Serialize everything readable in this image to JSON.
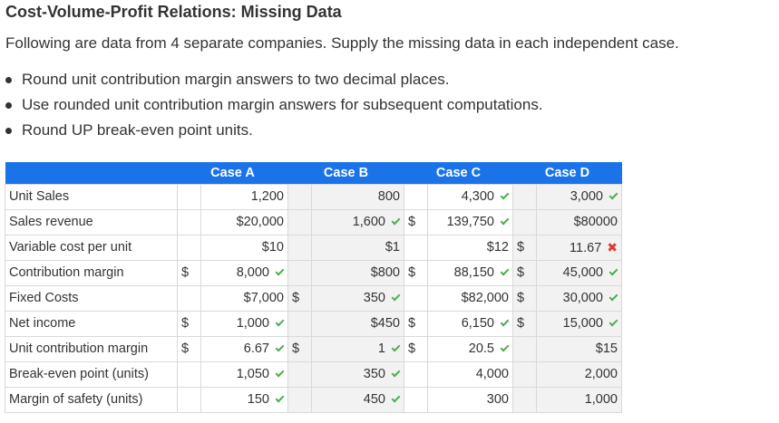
{
  "title": "Cost-Volume-Profit Relations: Missing Data",
  "intro": "Following are data from 4 separate companies. Supply the missing data in each independent case.",
  "bullets": [
    "Round unit contribution margin answers to two decimal places.",
    "Use rounded unit contribution margin answers for subsequent computations.",
    "Round UP break-even point units."
  ],
  "table": {
    "headers": [
      "Case A",
      "Case B",
      "Case C",
      "Case D"
    ],
    "rows": [
      {
        "label": "Unit Sales",
        "cells": [
          {
            "cur": "",
            "val": "1,200",
            "mark": ""
          },
          {
            "cur": "",
            "val": "800",
            "mark": ""
          },
          {
            "cur": "",
            "val": "4,300",
            "mark": "check"
          },
          {
            "cur": "",
            "val": "3,000",
            "mark": "check"
          }
        ]
      },
      {
        "label": "Sales revenue",
        "cells": [
          {
            "cur": "",
            "val": "$20,000",
            "mark": ""
          },
          {
            "cur": "",
            "val": "1,600",
            "mark": "check"
          },
          {
            "cur": "$",
            "val": "139,750",
            "mark": "check"
          },
          {
            "cur": "",
            "val": "$80000",
            "mark": ""
          }
        ]
      },
      {
        "label": "Variable cost per unit",
        "cells": [
          {
            "cur": "",
            "val": "$10",
            "mark": ""
          },
          {
            "cur": "",
            "val": "$1",
            "mark": ""
          },
          {
            "cur": "",
            "val": "$12",
            "mark": ""
          },
          {
            "cur": "$",
            "val": "11.67",
            "mark": "cross"
          }
        ]
      },
      {
        "label": "Contribution margin",
        "cells": [
          {
            "cur": "$",
            "val": "8,000",
            "mark": "check"
          },
          {
            "cur": "",
            "val": "$800",
            "mark": ""
          },
          {
            "cur": "$",
            "val": "88,150",
            "mark": "check"
          },
          {
            "cur": "$",
            "val": "45,000",
            "mark": "check"
          }
        ]
      },
      {
        "label": "Fixed Costs",
        "cells": [
          {
            "cur": "",
            "val": "$7,000",
            "mark": ""
          },
          {
            "cur": "$",
            "val": "350",
            "mark": "check"
          },
          {
            "cur": "",
            "val": "$82,000",
            "mark": ""
          },
          {
            "cur": "$",
            "val": "30,000",
            "mark": "check"
          }
        ]
      },
      {
        "label": "Net income",
        "cells": [
          {
            "cur": "$",
            "val": "1,000",
            "mark": "check"
          },
          {
            "cur": "",
            "val": "$450",
            "mark": ""
          },
          {
            "cur": "$",
            "val": "6,150",
            "mark": "check"
          },
          {
            "cur": "$",
            "val": "15,000",
            "mark": "check"
          }
        ]
      },
      {
        "label": "Unit contribution margin",
        "cells": [
          {
            "cur": "$",
            "val": "6.67",
            "mark": "check"
          },
          {
            "cur": "$",
            "val": "1",
            "mark": "check"
          },
          {
            "cur": "$",
            "val": "20.5",
            "mark": "check"
          },
          {
            "cur": "",
            "val": "$15",
            "mark": ""
          }
        ]
      },
      {
        "label": "Break-even point (units)",
        "cells": [
          {
            "cur": "",
            "val": "1,050",
            "mark": "check"
          },
          {
            "cur": "",
            "val": "350",
            "mark": "check"
          },
          {
            "cur": "",
            "val": "4,000",
            "mark": ""
          },
          {
            "cur": "",
            "val": "2,000",
            "mark": ""
          }
        ]
      },
      {
        "label": "Margin of safety (units)",
        "cells": [
          {
            "cur": "",
            "val": "150",
            "mark": "check"
          },
          {
            "cur": "",
            "val": "450",
            "mark": "check"
          },
          {
            "cur": "",
            "val": "300",
            "mark": ""
          },
          {
            "cur": "",
            "val": "1,000",
            "mark": ""
          }
        ]
      }
    ]
  }
}
